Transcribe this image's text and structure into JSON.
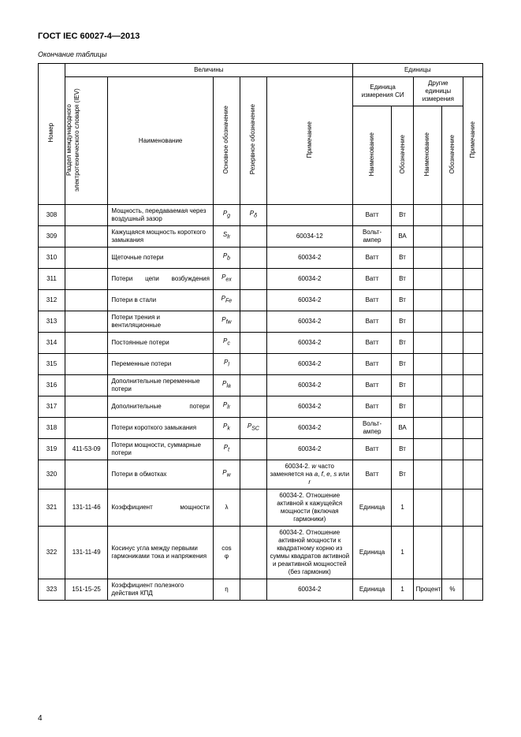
{
  "doc_title": "ГОСТ IEC 60027-4—2013",
  "table_caption": "Окончание таблицы",
  "page_number": "4",
  "headers": {
    "velichiny": "Величины",
    "edinicy": "Единицы",
    "nomer": "Номер",
    "iev": "Раздел международного электротехнического словаря (IEV)",
    "naimenovanie": "Наименование",
    "osn": "Основное обозначение",
    "rez": "Резервное обозначение",
    "prim": "Примечание",
    "si": "Единица измерения СИ",
    "other": "Другие единицы измерения",
    "u_name": "Наименование",
    "u_sym": "Обозначение",
    "o_name": "Наименование",
    "o_sym": "Обозначение",
    "last_prim": "Примечание"
  },
  "rows": [
    {
      "num": "308",
      "iev": "",
      "name": "Мощность, передаваемая через воздушный зазор",
      "sym1_b": "P",
      "sym1_s": "g",
      "sym2_b": "P",
      "sym2_s": "δ",
      "note": "",
      "u_name": "Ватт",
      "u_sym": "Вт",
      "o_name": "",
      "o_sym": "",
      "p": ""
    },
    {
      "num": "309",
      "iev": "",
      "name": "Кажущаяся мощность короткого замыкания",
      "sym1_b": "S",
      "sym1_s": "lr",
      "sym2_b": "",
      "sym2_s": "",
      "note": "60034-12",
      "u_name": "Вольт-ампер",
      "u_sym": "ВА",
      "o_name": "",
      "o_sym": "",
      "p": ""
    },
    {
      "num": "310",
      "iev": "",
      "name": "Щеточные потери",
      "sym1_b": "P",
      "sym1_s": "b",
      "sym2_b": "",
      "sym2_s": "",
      "note": "60034-2",
      "u_name": "Ватт",
      "u_sym": "Вт",
      "o_name": "",
      "o_sym": "",
      "p": ""
    },
    {
      "num": "311",
      "iev": "",
      "name": "Потери цепи возбуждения",
      "sym1_b": "P",
      "sym1_s": "ex",
      "sym2_b": "",
      "sym2_s": "",
      "note": "60034-2",
      "u_name": "Ватт",
      "u_sym": "Вт",
      "o_name": "",
      "o_sym": "",
      "p": ""
    },
    {
      "num": "312",
      "iev": "",
      "name": "Потери в стали",
      "sym1_b": "P",
      "sym1_s": "Fe",
      "sym2_b": "",
      "sym2_s": "",
      "note": "60034-2",
      "u_name": "Ватт",
      "u_sym": "Вт",
      "o_name": "",
      "o_sym": "",
      "p": ""
    },
    {
      "num": "313",
      "iev": "",
      "name": "Потери трения и вентиляционные",
      "sym1_b": "P",
      "sym1_s": "fw",
      "sym2_b": "",
      "sym2_s": "",
      "note": "60034-2",
      "u_name": "Ватт",
      "u_sym": "Вт",
      "o_name": "",
      "o_sym": "",
      "p": ""
    },
    {
      "num": "314",
      "iev": "",
      "name": "Постоянные потери",
      "sym1_b": "P",
      "sym1_s": "c",
      "sym2_b": "",
      "sym2_s": "",
      "note": "60034-2",
      "u_name": "Ватт",
      "u_sym": "Вт",
      "o_name": "",
      "o_sym": "",
      "p": ""
    },
    {
      "num": "315",
      "iev": "",
      "name": "Переменные потери",
      "sym1_b": "P",
      "sym1_s": "l",
      "sym2_b": "",
      "sym2_s": "",
      "note": "60034-2",
      "u_name": "Ватт",
      "u_sym": "Вт",
      "o_name": "",
      "o_sym": "",
      "p": ""
    },
    {
      "num": "316",
      "iev": "",
      "name": "Дополнительные переменные потери",
      "sym1_b": "P",
      "sym1_s": "la",
      "sym2_b": "",
      "sym2_s": "",
      "note": "60034-2",
      "u_name": "Ватт",
      "u_sym": "Вт",
      "o_name": "",
      "o_sym": "",
      "p": ""
    },
    {
      "num": "317",
      "iev": "",
      "name": "Дополнительные потери",
      "sym1_b": "P",
      "sym1_s": "lr",
      "sym2_b": "",
      "sym2_s": "",
      "note": "60034-2",
      "u_name": "Ватт",
      "u_sym": "Вт",
      "o_name": "",
      "o_sym": "",
      "p": ""
    },
    {
      "num": "318",
      "iev": "",
      "name": "Потери короткого замыкания",
      "sym1_b": "P",
      "sym1_s": "k",
      "sym2_b": "P",
      "sym2_s": "SC",
      "note": "60034-2",
      "u_name": "Вольт-ампер",
      "u_sym": "ВА",
      "o_name": "",
      "o_sym": "",
      "p": ""
    },
    {
      "num": "319",
      "iev": "411-53-09",
      "name": "Потери мощности, суммарные потери",
      "sym1_b": "P",
      "sym1_s": "t",
      "sym2_b": "",
      "sym2_s": "",
      "note": "60034-2",
      "u_name": "Ватт",
      "u_sym": "Вт",
      "o_name": "",
      "o_sym": "",
      "p": ""
    },
    {
      "num": "320",
      "iev": "",
      "name": "Потери в обмотках",
      "sym1_b": "P",
      "sym1_s": "w",
      "sym2_b": "",
      "sym2_s": "",
      "note": "60034-2. <i>w</i> часто заменяется на <i>a</i>, <i>f</i>, <i>e</i>, <i>s</i> или <i>r</i>",
      "u_name": "Ватт",
      "u_sym": "Вт",
      "o_name": "",
      "o_sym": "",
      "p": ""
    },
    {
      "num": "321",
      "iev": "131-11-46",
      "name": "Коэффициент мощности",
      "sym1_b": "λ",
      "sym1_s": "",
      "sym2_b": "",
      "sym2_s": "",
      "note": "60034-2. Отношение активной к кажущейся мощности (включая гармоники)",
      "u_name": "Единица",
      "u_sym": "1",
      "o_name": "",
      "o_sym": "",
      "p": ""
    },
    {
      "num": "322",
      "iev": "131-11-49",
      "name": "Косинус угла между первыми гармониками тока и напряжения",
      "sym1_b": "cos φ",
      "sym1_s": "",
      "sym2_b": "",
      "sym2_s": "",
      "note": "60034-2. Отношение активной мощности к квадратному корню из суммы квадратов активной и реактивной мощностей (без гармоник)",
      "u_name": "Единица",
      "u_sym": "1",
      "o_name": "",
      "o_sym": "",
      "p": ""
    },
    {
      "num": "323",
      "iev": "151-15-25",
      "name": "Коэффициент полезного действия КПД",
      "sym1_b": "η",
      "sym1_s": "",
      "sym2_b": "",
      "sym2_s": "",
      "note": "60034-2",
      "u_name": "Единица",
      "u_sym": "1",
      "o_name": "Процент",
      "o_sym": "%",
      "p": ""
    }
  ]
}
